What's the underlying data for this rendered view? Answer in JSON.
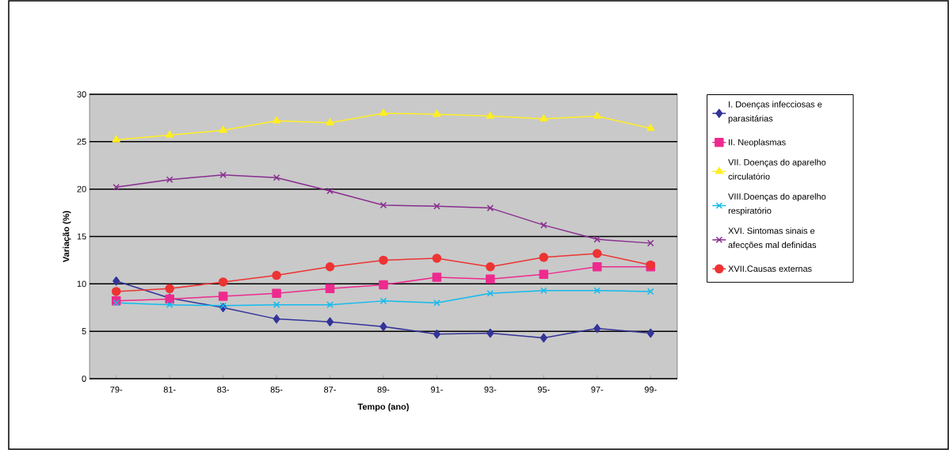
{
  "chart_data": {
    "type": "line",
    "xlabel": "Tempo (ano)",
    "ylabel": "Variação (%)",
    "categories": [
      "79-",
      "81-",
      "83-",
      "85-",
      "87-",
      "89-",
      "91-",
      "93-",
      "95-",
      "97-",
      "99-"
    ],
    "ylim": [
      0,
      30
    ],
    "yticks": [
      0,
      5,
      10,
      15,
      20,
      25,
      30
    ],
    "grid": "y",
    "legend": "right",
    "series": [
      {
        "name": "I.   Doenças infecciosas e parasitárias",
        "color": "#333399",
        "marker": "diamond",
        "values": [
          10.3,
          8.5,
          7.5,
          6.3,
          6.0,
          5.5,
          4.7,
          4.8,
          4.3,
          5.3,
          4.8
        ]
      },
      {
        "name": "II.  Neoplasmas",
        "color": "#ee2a8f",
        "marker": "square",
        "values": [
          8.2,
          8.4,
          8.7,
          9.0,
          9.5,
          9.9,
          10.7,
          10.5,
          11.0,
          11.8,
          11.8
        ]
      },
      {
        "name": "VII. Doenças do aparelho circulatório",
        "color": "#ffee22",
        "marker": "triangle",
        "values": [
          25.2,
          25.7,
          26.2,
          27.2,
          27.0,
          28.0,
          27.9,
          27.7,
          27.4,
          27.7,
          26.4
        ]
      },
      {
        "name": "VIII.Doenças do aparelho respiratório",
        "color": "#11bbee",
        "marker": "cross",
        "values": [
          8.0,
          7.8,
          7.7,
          7.8,
          7.8,
          8.2,
          8.0,
          9.0,
          9.3,
          9.3,
          9.2
        ]
      },
      {
        "name": "XVI. Sintomas sinais e afecções mal definidas",
        "color": "#882d8f",
        "marker": "cross",
        "values": [
          20.2,
          21.0,
          21.5,
          21.2,
          19.8,
          18.3,
          18.2,
          18.0,
          16.2,
          14.7,
          14.3
        ]
      },
      {
        "name": "XVII.Causas externas",
        "color": "#ee3333",
        "marker": "circle",
        "values": [
          9.2,
          9.5,
          10.2,
          10.9,
          11.8,
          12.5,
          12.7,
          11.8,
          12.8,
          13.2,
          12.0
        ]
      }
    ]
  }
}
